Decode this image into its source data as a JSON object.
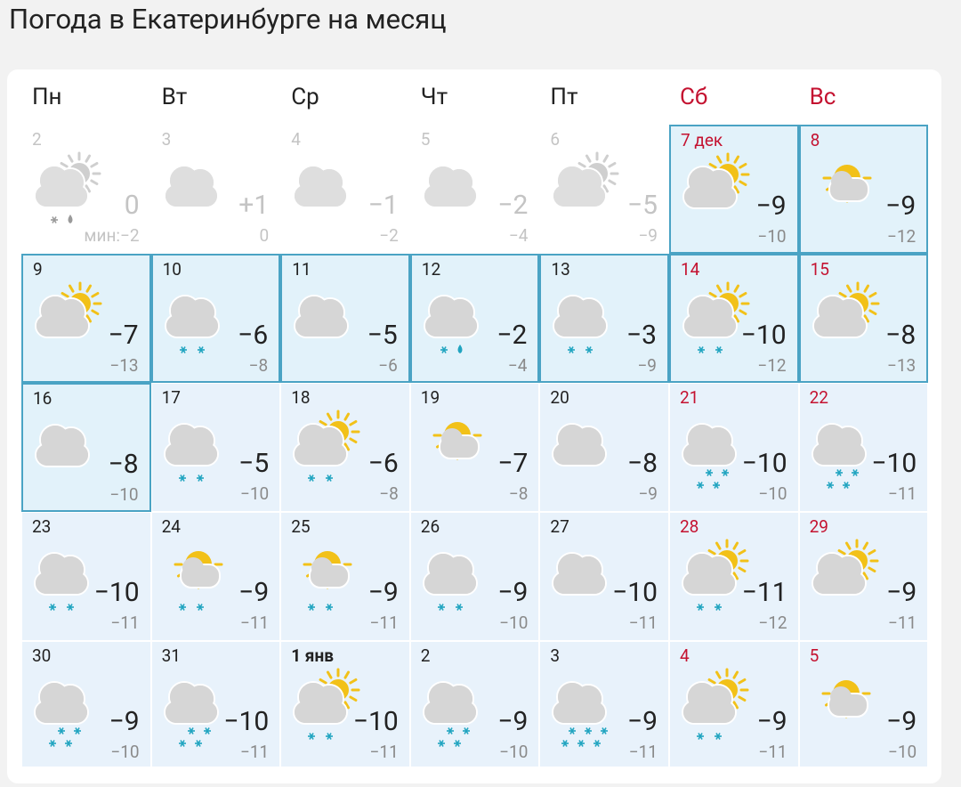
{
  "title": "Погода в Екатеринбурге на месяц",
  "weekdays": [
    "Пн",
    "Вт",
    "Ср",
    "Чт",
    "Пт",
    "Сб",
    "Вс"
  ],
  "weeks": [
    [
      {
        "date": "2",
        "max": "0",
        "min_label": "мин:",
        "min": "−2"
      },
      {
        "date": "3",
        "max": "+1",
        "min": "0"
      },
      {
        "date": "4",
        "max": "−1",
        "min": "−2"
      },
      {
        "date": "5",
        "max": "−2",
        "min": "−4"
      },
      {
        "date": "6",
        "max": "−5",
        "min": "−9"
      },
      {
        "date": "7 дек",
        "max": "−9",
        "min": "−10"
      },
      {
        "date": "8",
        "max": "−9",
        "min": "−12"
      }
    ],
    [
      {
        "date": "9",
        "max": "−7",
        "min": "−13"
      },
      {
        "date": "10",
        "max": "−6",
        "min": "−8"
      },
      {
        "date": "11",
        "max": "−5",
        "min": "−6"
      },
      {
        "date": "12",
        "max": "−2",
        "min": "−4"
      },
      {
        "date": "13",
        "max": "−3",
        "min": "−9"
      },
      {
        "date": "14",
        "max": "−10",
        "min": "−12"
      },
      {
        "date": "15",
        "max": "−8",
        "min": "−13"
      }
    ],
    [
      {
        "date": "16",
        "max": "−8",
        "min": "−10"
      },
      {
        "date": "17",
        "max": "−5",
        "min": "−10"
      },
      {
        "date": "18",
        "max": "−6",
        "min": "−8"
      },
      {
        "date": "19",
        "max": "−7",
        "min": "−8"
      },
      {
        "date": "20",
        "max": "−8",
        "min": "−9"
      },
      {
        "date": "21",
        "max": "−10",
        "min": "−10"
      },
      {
        "date": "22",
        "max": "−10",
        "min": "−11"
      }
    ],
    [
      {
        "date": "23",
        "max": "−10",
        "min": "−11"
      },
      {
        "date": "24",
        "max": "−9",
        "min": "−11"
      },
      {
        "date": "25",
        "max": "−9",
        "min": "−11"
      },
      {
        "date": "26",
        "max": "−9",
        "min": "−10"
      },
      {
        "date": "27",
        "max": "−10",
        "min": "−11"
      },
      {
        "date": "28",
        "max": "−11",
        "min": "−12"
      },
      {
        "date": "29",
        "max": "−9",
        "min": "−11"
      }
    ],
    [
      {
        "date": "30",
        "max": "−9",
        "min": "−10"
      },
      {
        "date": "31",
        "max": "−10",
        "min": "−11"
      },
      {
        "date": "1 янв",
        "max": "−10",
        "min": "−11"
      },
      {
        "date": "2",
        "max": "−9",
        "min": "−10"
      },
      {
        "date": "3",
        "max": "−9",
        "min": "−11"
      },
      {
        "date": "4",
        "max": "−9",
        "min": "−11"
      },
      {
        "date": "5",
        "max": "−9",
        "min": "−10"
      }
    ]
  ]
}
